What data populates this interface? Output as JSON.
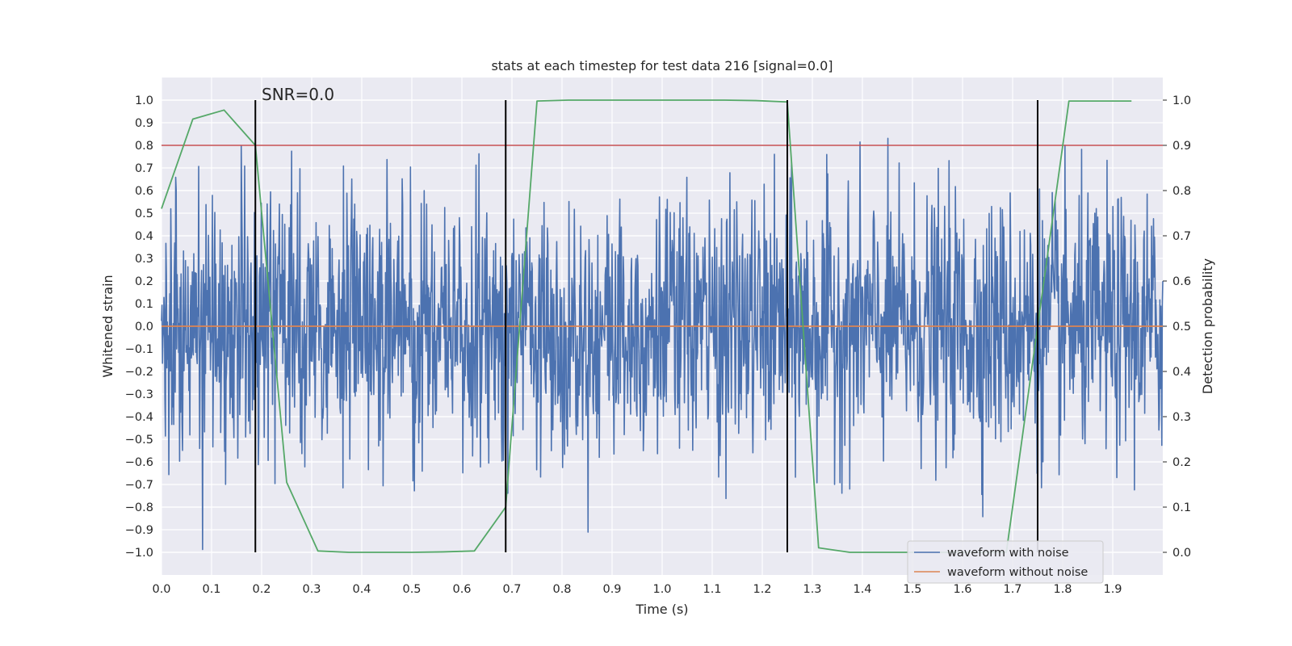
{
  "chart_data": {
    "type": "line",
    "title": "stats at each timestep for test data 216 [signal=0.0]",
    "xlabel": "Time (s)",
    "ylabel": "Whitened strain",
    "y2label": "Detection probability",
    "annotation": "SNR=0.0",
    "xlim": [
      0.0,
      2.0
    ],
    "ylim": [
      -1.1,
      1.1
    ],
    "y2lim": [
      -0.05,
      1.05
    ],
    "x_ticks": [
      "0.0",
      "0.1",
      "0.2",
      "0.3",
      "0.4",
      "0.5",
      "0.6",
      "0.7",
      "0.8",
      "0.9",
      "1.0",
      "1.1",
      "1.2",
      "1.3",
      "1.4",
      "1.5",
      "1.6",
      "1.7",
      "1.8",
      "1.9"
    ],
    "y_ticks": [
      "1.0",
      "0.9",
      "0.8",
      "0.7",
      "0.6",
      "0.5",
      "0.4",
      "0.3",
      "0.2",
      "0.1",
      "0.0",
      "-0.1",
      "-0.2",
      "-0.3",
      "-0.4",
      "-0.5",
      "-0.6",
      "-0.7",
      "-0.8",
      "-0.9",
      "-1.0"
    ],
    "y2_ticks": [
      "1.0",
      "0.9",
      "0.8",
      "0.7",
      "0.6",
      "0.5",
      "0.4",
      "0.3",
      "0.2",
      "0.1",
      "0.0"
    ],
    "grid": true,
    "legend": "bottom-right",
    "threshold": {
      "value": 0.9,
      "axis": "right",
      "color": "#c44e52"
    },
    "vertical_markers": {
      "x": [
        0.1875,
        0.6875,
        1.25,
        1.75
      ],
      "ymin": -1.0,
      "ymax": 1.0,
      "color": "#000000"
    },
    "series": [
      {
        "name": "waveform with noise",
        "color": "#4c72b0",
        "axis": "left",
        "sampling": {
          "x_start": 0.0,
          "x_end": 2.0,
          "count": 2048,
          "amplitude_range": [
            -1.0,
            0.97
          ]
        }
      },
      {
        "name": "waveform without noise",
        "color": "#dd8452",
        "axis": "left",
        "x": [
          0.0,
          2.0
        ],
        "y": [
          0.0,
          0.0
        ]
      },
      {
        "color": "#55a868",
        "axis": "right",
        "x": [
          0.0,
          0.0625,
          0.125,
          0.1875,
          0.25,
          0.3125,
          0.375,
          0.4375,
          0.5,
          0.5625,
          0.625,
          0.6875,
          0.75,
          0.8125,
          0.875,
          0.9375,
          1.0,
          1.0625,
          1.125,
          1.1875,
          1.25,
          1.3125,
          1.375,
          1.4375,
          1.5,
          1.5625,
          1.625,
          1.6875,
          1.75,
          1.8125,
          1.875,
          1.9375
        ],
        "y": [
          0.76,
          0.958,
          0.978,
          0.9,
          0.155,
          0.003,
          0.0,
          0.0,
          0.0,
          0.001,
          0.003,
          0.1,
          0.998,
          1.0,
          1.0,
          1.0,
          1.0,
          1.0,
          1.0,
          0.999,
          0.996,
          0.01,
          0.0,
          0.0,
          0.0,
          0.0,
          0.0,
          0.0,
          0.5,
          0.998,
          0.998,
          0.998
        ]
      }
    ]
  }
}
